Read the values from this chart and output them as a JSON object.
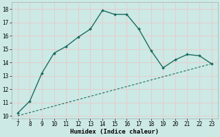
{
  "xlabel": "Humidex (Indice chaleur)",
  "x": [
    7,
    8,
    9,
    10,
    11,
    12,
    13,
    14,
    15,
    16,
    17,
    18,
    19,
    20,
    21,
    22,
    23
  ],
  "y_main": [
    10.2,
    11.1,
    13.2,
    14.7,
    15.2,
    15.9,
    16.5,
    17.9,
    17.6,
    17.6,
    16.5,
    14.9,
    13.6,
    14.2,
    14.6,
    14.5,
    13.9
  ],
  "trend_x": [
    7,
    23
  ],
  "trend_y": [
    10.0,
    13.9
  ],
  "xlim": [
    6.5,
    23.5
  ],
  "ylim": [
    9.8,
    18.5
  ],
  "yticks": [
    10,
    11,
    12,
    13,
    14,
    15,
    16,
    17,
    18
  ],
  "xticks": [
    7,
    8,
    9,
    10,
    11,
    12,
    13,
    14,
    15,
    16,
    17,
    18,
    19,
    20,
    21,
    22,
    23
  ],
  "line_color": "#1a6b5e",
  "trend_color": "#1a6b5e",
  "bg_color": "#cce9e5",
  "grid_color": "#b0d8d4",
  "label_fontsize": 6.5,
  "tick_fontsize": 5.5
}
